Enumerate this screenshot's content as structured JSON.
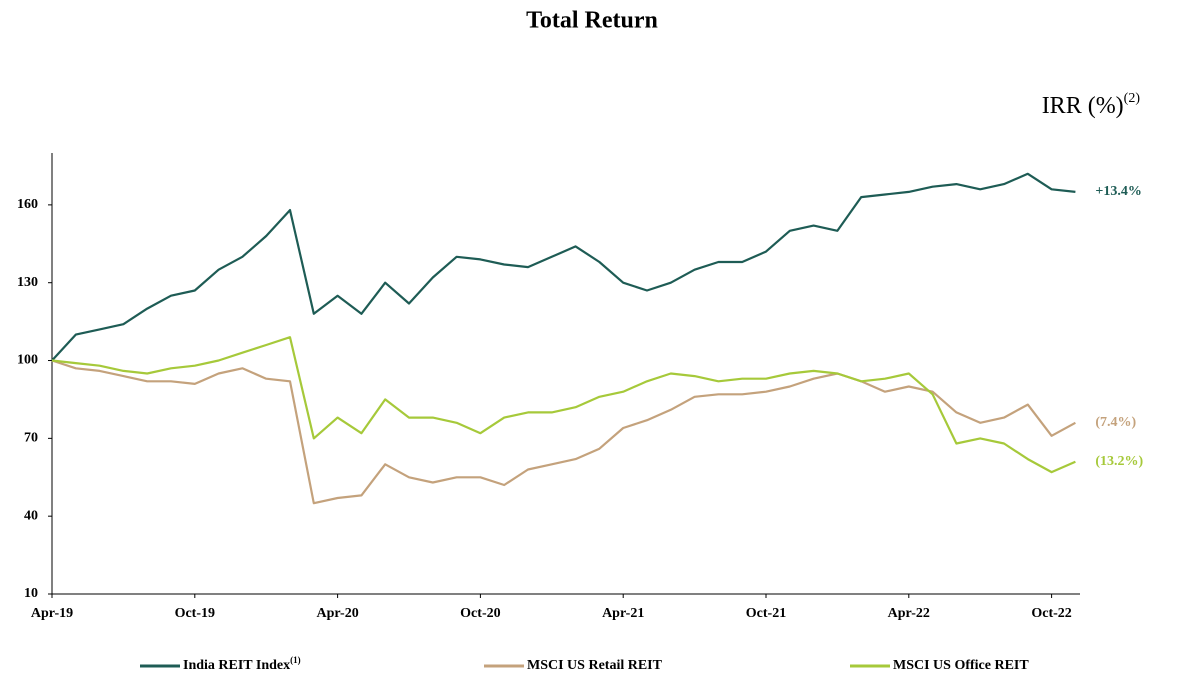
{
  "chart_data": {
    "type": "line",
    "title": "Total Return",
    "y_axis_label": {
      "text": "IRR (%)",
      "superscript": "(2)"
    },
    "categories": [
      "Apr-19",
      null,
      null,
      null,
      null,
      null,
      "Oct-19",
      null,
      null,
      null,
      null,
      null,
      "Apr-20",
      null,
      null,
      null,
      null,
      null,
      "Oct-20",
      null,
      null,
      null,
      null,
      null,
      "Apr-21",
      null,
      null,
      null,
      null,
      null,
      "Oct-21",
      null,
      null,
      null,
      null,
      null,
      "Apr-22",
      null,
      null,
      null,
      null,
      null,
      "Oct-22",
      null
    ],
    "ylim": [
      10,
      180
    ],
    "yticks": [
      10,
      40,
      70,
      100,
      130,
      160
    ],
    "grid": false,
    "series": [
      {
        "name": "India REIT Index",
        "name_superscript": "(1)",
        "color": "#1e5c55",
        "end_label": "+13.4%",
        "values": [
          100,
          110,
          112,
          114,
          120,
          125,
          127,
          135,
          140,
          148,
          158,
          118,
          125,
          118,
          130,
          122,
          132,
          140,
          139,
          137,
          136,
          140,
          144,
          138,
          130,
          127,
          130,
          135,
          138,
          138,
          142,
          150,
          152,
          150,
          163,
          164,
          165,
          167,
          168,
          166,
          168,
          172,
          166,
          165
        ]
      },
      {
        "name": "MSCI US Retail REIT",
        "color": "#c4a27c",
        "end_label": "(7.4%)",
        "values": [
          100,
          97,
          96,
          94,
          92,
          92,
          91,
          95,
          97,
          93,
          92,
          45,
          47,
          48,
          60,
          55,
          53,
          55,
          55,
          52,
          58,
          60,
          62,
          66,
          74,
          77,
          81,
          86,
          87,
          87,
          88,
          90,
          93,
          95,
          92,
          88,
          90,
          88,
          80,
          76,
          78,
          83,
          71,
          76
        ]
      },
      {
        "name": "MSCI US Office REIT",
        "color": "#a6c93a",
        "end_label": "(13.2%)",
        "values": [
          100,
          99,
          98,
          96,
          95,
          97,
          98,
          100,
          103,
          106,
          109,
          70,
          78,
          72,
          85,
          78,
          78,
          76,
          72,
          78,
          80,
          80,
          82,
          86,
          88,
          92,
          95,
          94,
          92,
          93,
          93,
          95,
          96,
          95,
          92,
          93,
          95,
          87,
          68,
          70,
          68,
          62,
          57,
          61
        ]
      }
    ]
  }
}
